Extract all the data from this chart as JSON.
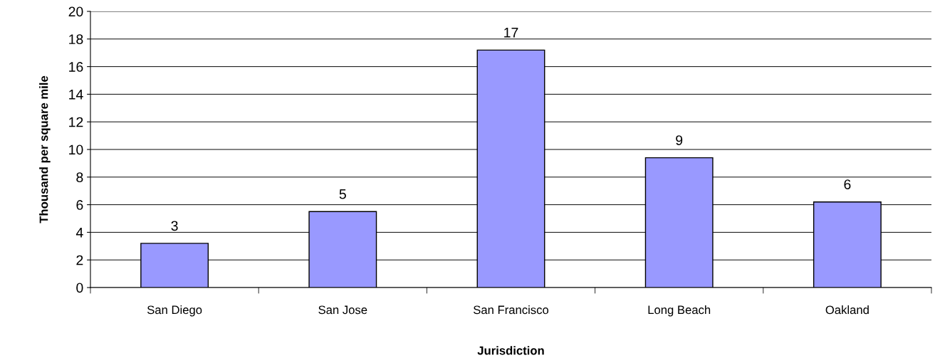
{
  "chart_data": {
    "type": "bar",
    "xlabel": "Jurisdiction",
    "ylabel": "Thousand per square mile",
    "categories": [
      "San Diego",
      "San Jose",
      "San Francisco",
      "Long Beach",
      "Oakland"
    ],
    "values": [
      3.2,
      5.5,
      17.2,
      9.4,
      6.2
    ],
    "value_labels": [
      "3",
      "5",
      "17",
      "9",
      "6"
    ],
    "color": "#9999ff",
    "ylim": [
      0,
      20
    ],
    "yticks": [
      0,
      2,
      4,
      6,
      8,
      10,
      12,
      14,
      16,
      18,
      20
    ],
    "grid": "y"
  }
}
